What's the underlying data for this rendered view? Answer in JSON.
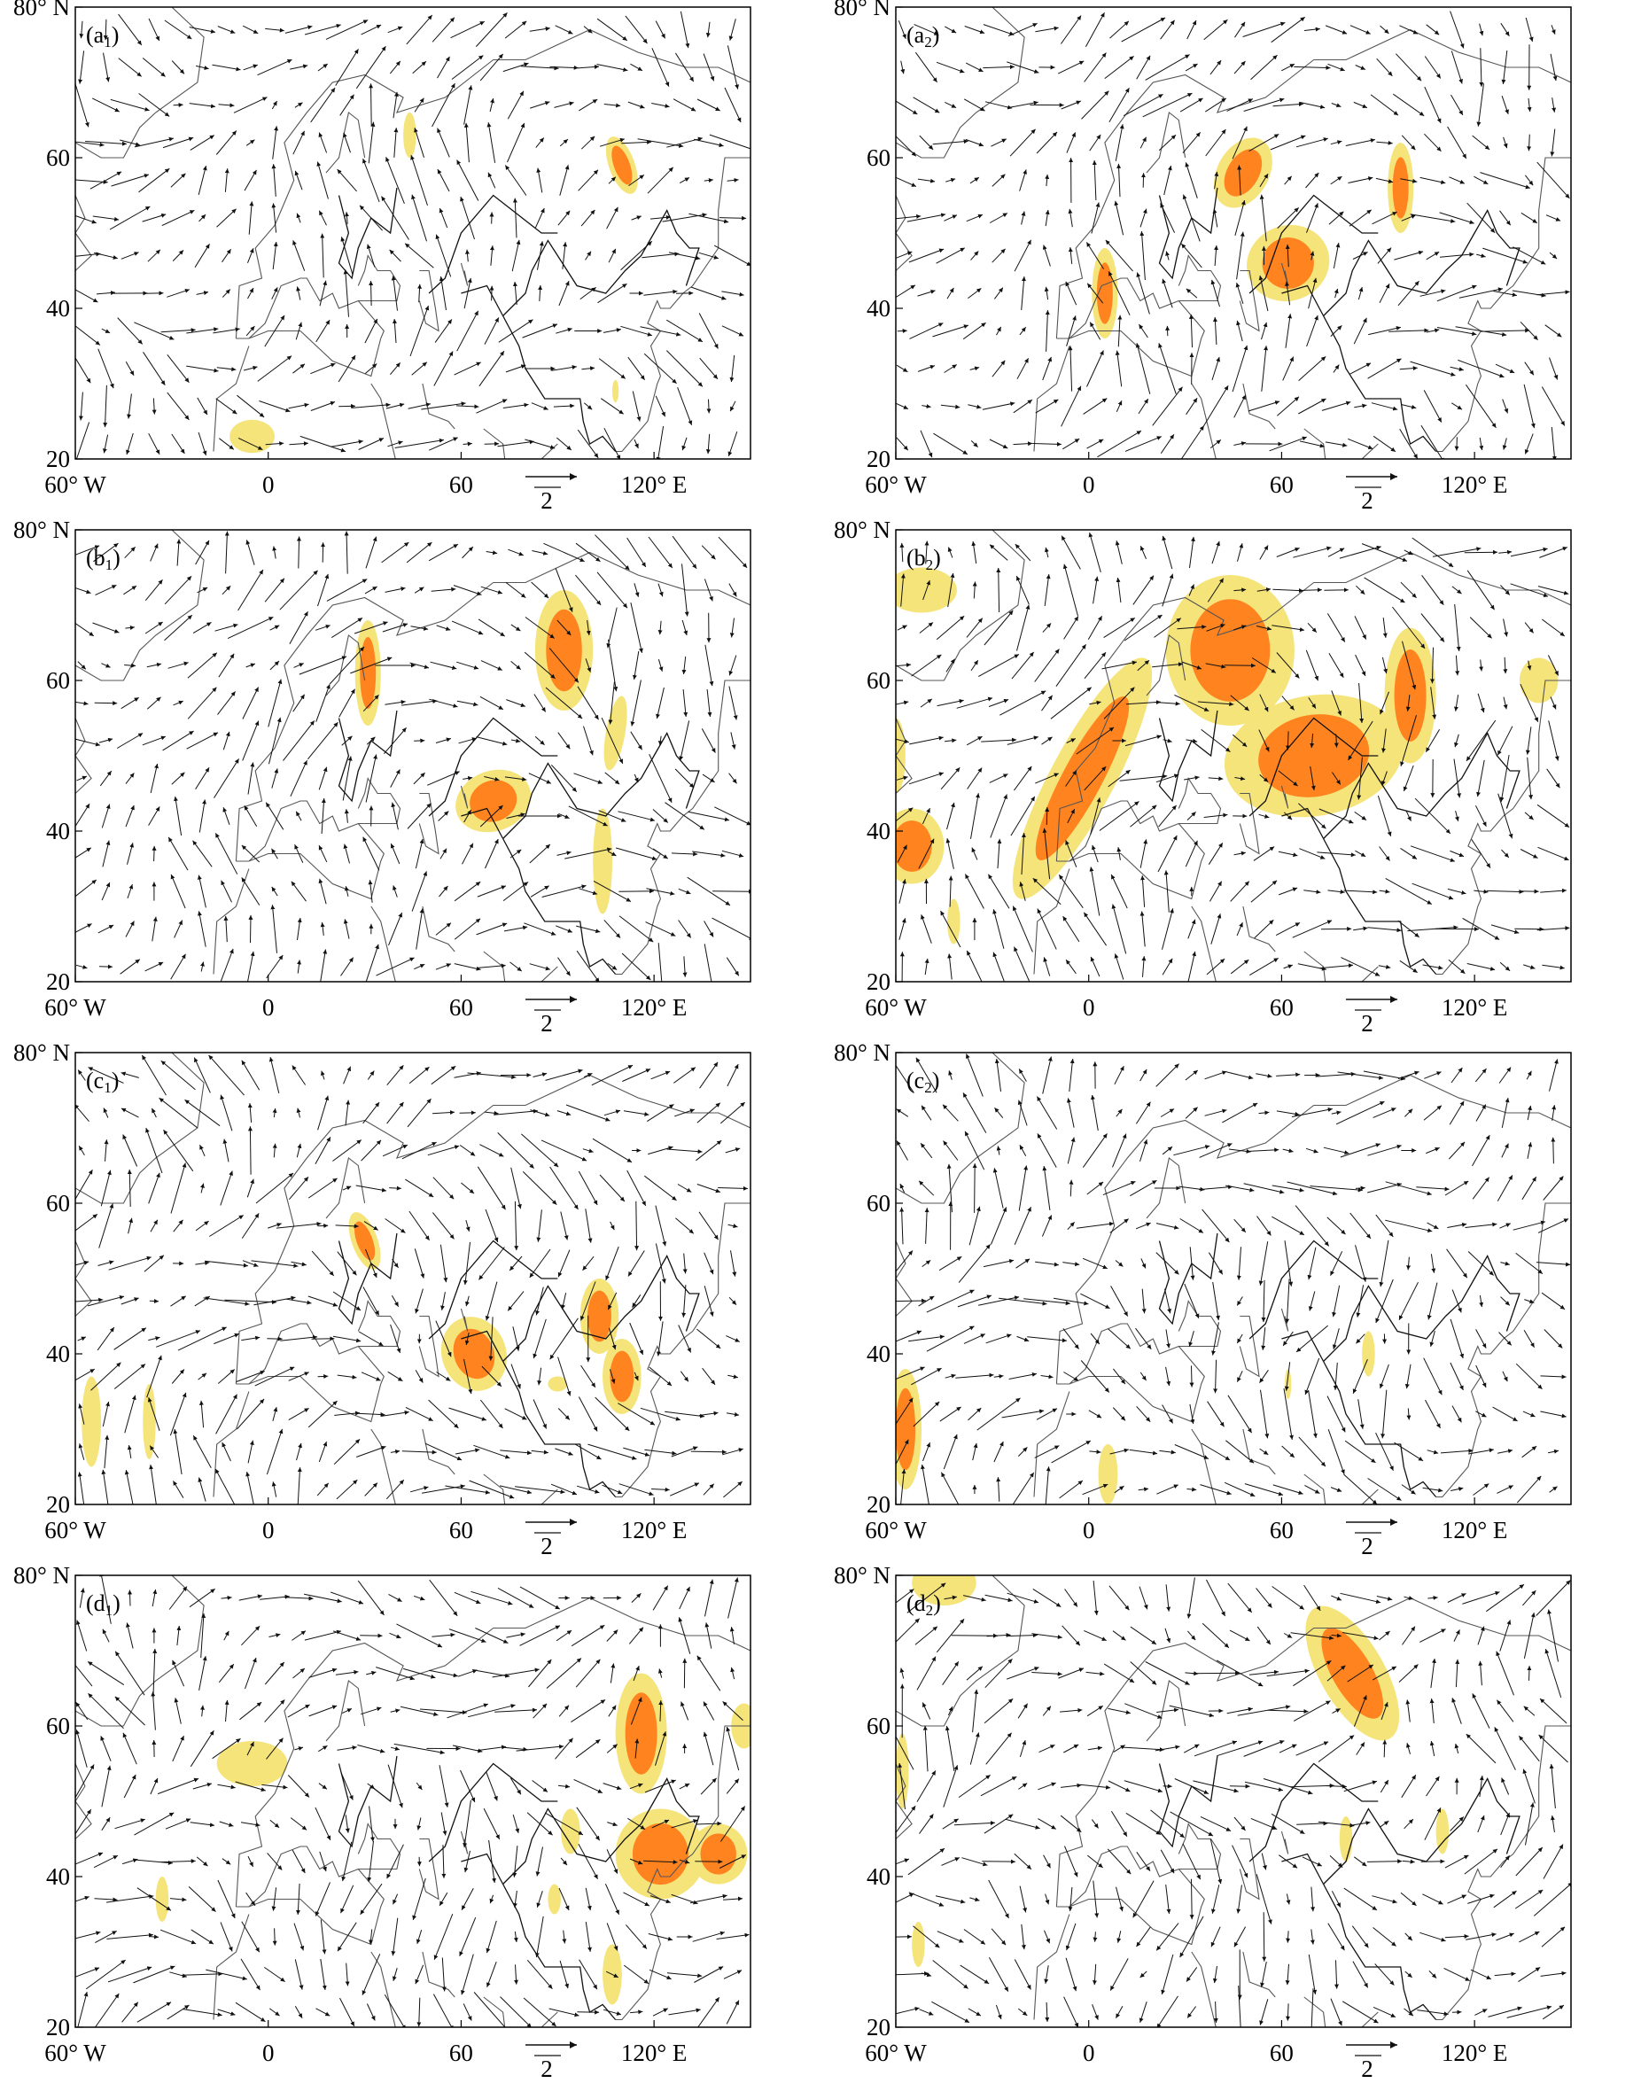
{
  "colors": {
    "shade_low": "#f5e47a",
    "shade_high": "#ff8420",
    "shade_peak": "#ea4a1a",
    "frame": "#000000",
    "coast": "#555555",
    "vector": "#111111"
  },
  "axes": {
    "y_ticks": [
      "80° N",
      "60",
      "40",
      "20"
    ],
    "x_ticks": [
      "60° W",
      "0",
      "60",
      "120° E"
    ],
    "ref_vector_label": "2",
    "lon_range": [
      -60,
      150
    ],
    "lat_range": [
      20,
      80
    ]
  },
  "panels": [
    {
      "id": "a1",
      "label_main": "(a",
      "label_sub": "1",
      "label_end": ")"
    },
    {
      "id": "a2",
      "label_main": "(a",
      "label_sub": "2",
      "label_end": ")"
    },
    {
      "id": "b1",
      "label_main": "(b",
      "label_sub": "1",
      "label_end": ")"
    },
    {
      "id": "b2",
      "label_main": "(b",
      "label_sub": "2",
      "label_end": ")"
    },
    {
      "id": "c1",
      "label_main": "(c",
      "label_sub": "1",
      "label_end": ")"
    },
    {
      "id": "c2",
      "label_main": "(c",
      "label_sub": "2",
      "label_end": ")"
    },
    {
      "id": "d1",
      "label_main": "(d",
      "label_sub": "1",
      "label_end": ")"
    },
    {
      "id": "d2",
      "label_main": "(d",
      "label_sub": "2",
      "label_end": ")"
    }
  ]
}
